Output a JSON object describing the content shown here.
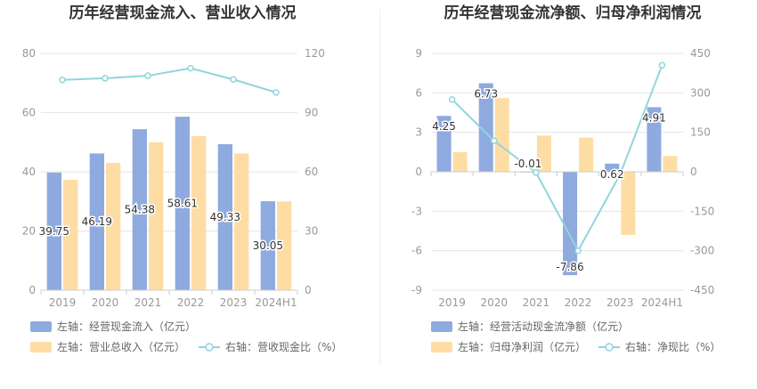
{
  "colors": {
    "blue": "#8eaadf",
    "orange": "#fedda5",
    "cyan": "#91d5dc",
    "grid": "#e6e6e6",
    "axis": "#cccccc",
    "divider": "#eeeeee"
  },
  "chart_data": [
    {
      "type": "bar",
      "title": "历年经营现金流入、营业收入情况",
      "categories": [
        "2019",
        "2020",
        "2021",
        "2022",
        "2023",
        "2024H1"
      ],
      "left_axis": {
        "min": 0,
        "max": 80,
        "ticks": [
          "0",
          "20",
          "40",
          "60",
          "80"
        ]
      },
      "right_axis": {
        "min": 0,
        "max": 120,
        "ticks": [
          "0",
          "30",
          "60",
          "90",
          "120"
        ]
      },
      "series": [
        {
          "name": "左轴：经营现金流入（亿元）",
          "kind": "bar",
          "axis": "left",
          "color": "#8eaadf",
          "values": [
            39.75,
            46.19,
            54.38,
            58.61,
            49.33,
            30.05
          ],
          "labels": [
            "39.75",
            "46.19",
            "54.38",
            "58.61",
            "49.33",
            "30.05"
          ]
        },
        {
          "name": "左轴：营业总收入（亿元）",
          "kind": "bar",
          "axis": "left",
          "color": "#fedda5",
          "values": [
            37.3,
            43.0,
            50.0,
            52.1,
            46.2,
            30.0
          ]
        },
        {
          "name": "右轴：营收现金比（%）",
          "kind": "line",
          "axis": "right",
          "color": "#91d5dc",
          "values": [
            106.6,
            107.4,
            108.7,
            112.5,
            106.8,
            100.2
          ]
        }
      ],
      "legend": [
        {
          "label": "左轴：经营现金流入（亿元）",
          "kind": "box",
          "color": "#8eaadf"
        },
        {
          "label": "左轴：营业总收入（亿元）",
          "kind": "box",
          "color": "#fedda5"
        },
        {
          "label": "右轴：营收现金比（%）",
          "kind": "line",
          "color": "#91d5dc"
        }
      ]
    },
    {
      "type": "bar",
      "title": "历年经营现金流净额、归母净利润情况",
      "categories": [
        "2019",
        "2020",
        "2021",
        "2022",
        "2023",
        "2024H1"
      ],
      "left_axis": {
        "min": -9,
        "max": 9,
        "ticks": [
          "-9",
          "-6",
          "-3",
          "0",
          "3",
          "6",
          "9"
        ]
      },
      "right_axis": {
        "min": -450,
        "max": 450,
        "ticks": [
          "-450",
          "-300",
          "-150",
          "0",
          "150",
          "300",
          "450"
        ]
      },
      "series": [
        {
          "name": "左轴：经营活动现金流净额（亿元）",
          "kind": "bar",
          "axis": "left",
          "color": "#8eaadf",
          "values": [
            4.25,
            6.73,
            -0.01,
            -7.86,
            0.62,
            4.91
          ],
          "labels": [
            "4.25",
            "6.73",
            "-0.01",
            "-7.86",
            "0.62",
            "4.91"
          ]
        },
        {
          "name": "左轴：归母净利润（亿元）",
          "kind": "bar",
          "axis": "left",
          "color": "#fedda5",
          "values": [
            1.5,
            5.6,
            2.75,
            2.6,
            -4.8,
            1.2
          ]
        },
        {
          "name": "右轴：净现比（%）",
          "kind": "line",
          "axis": "right",
          "color": "#91d5dc",
          "values": [
            275,
            118,
            -3,
            -300,
            -10,
            405
          ]
        }
      ],
      "legend": [
        {
          "label": "左轴：经营活动现金流净额（亿元）",
          "kind": "box",
          "color": "#8eaadf"
        },
        {
          "label": "左轴：归母净利润（亿元）",
          "kind": "box",
          "color": "#fedda5"
        },
        {
          "label": "右轴：净现比（%）",
          "kind": "line",
          "color": "#91d5dc"
        }
      ]
    }
  ]
}
